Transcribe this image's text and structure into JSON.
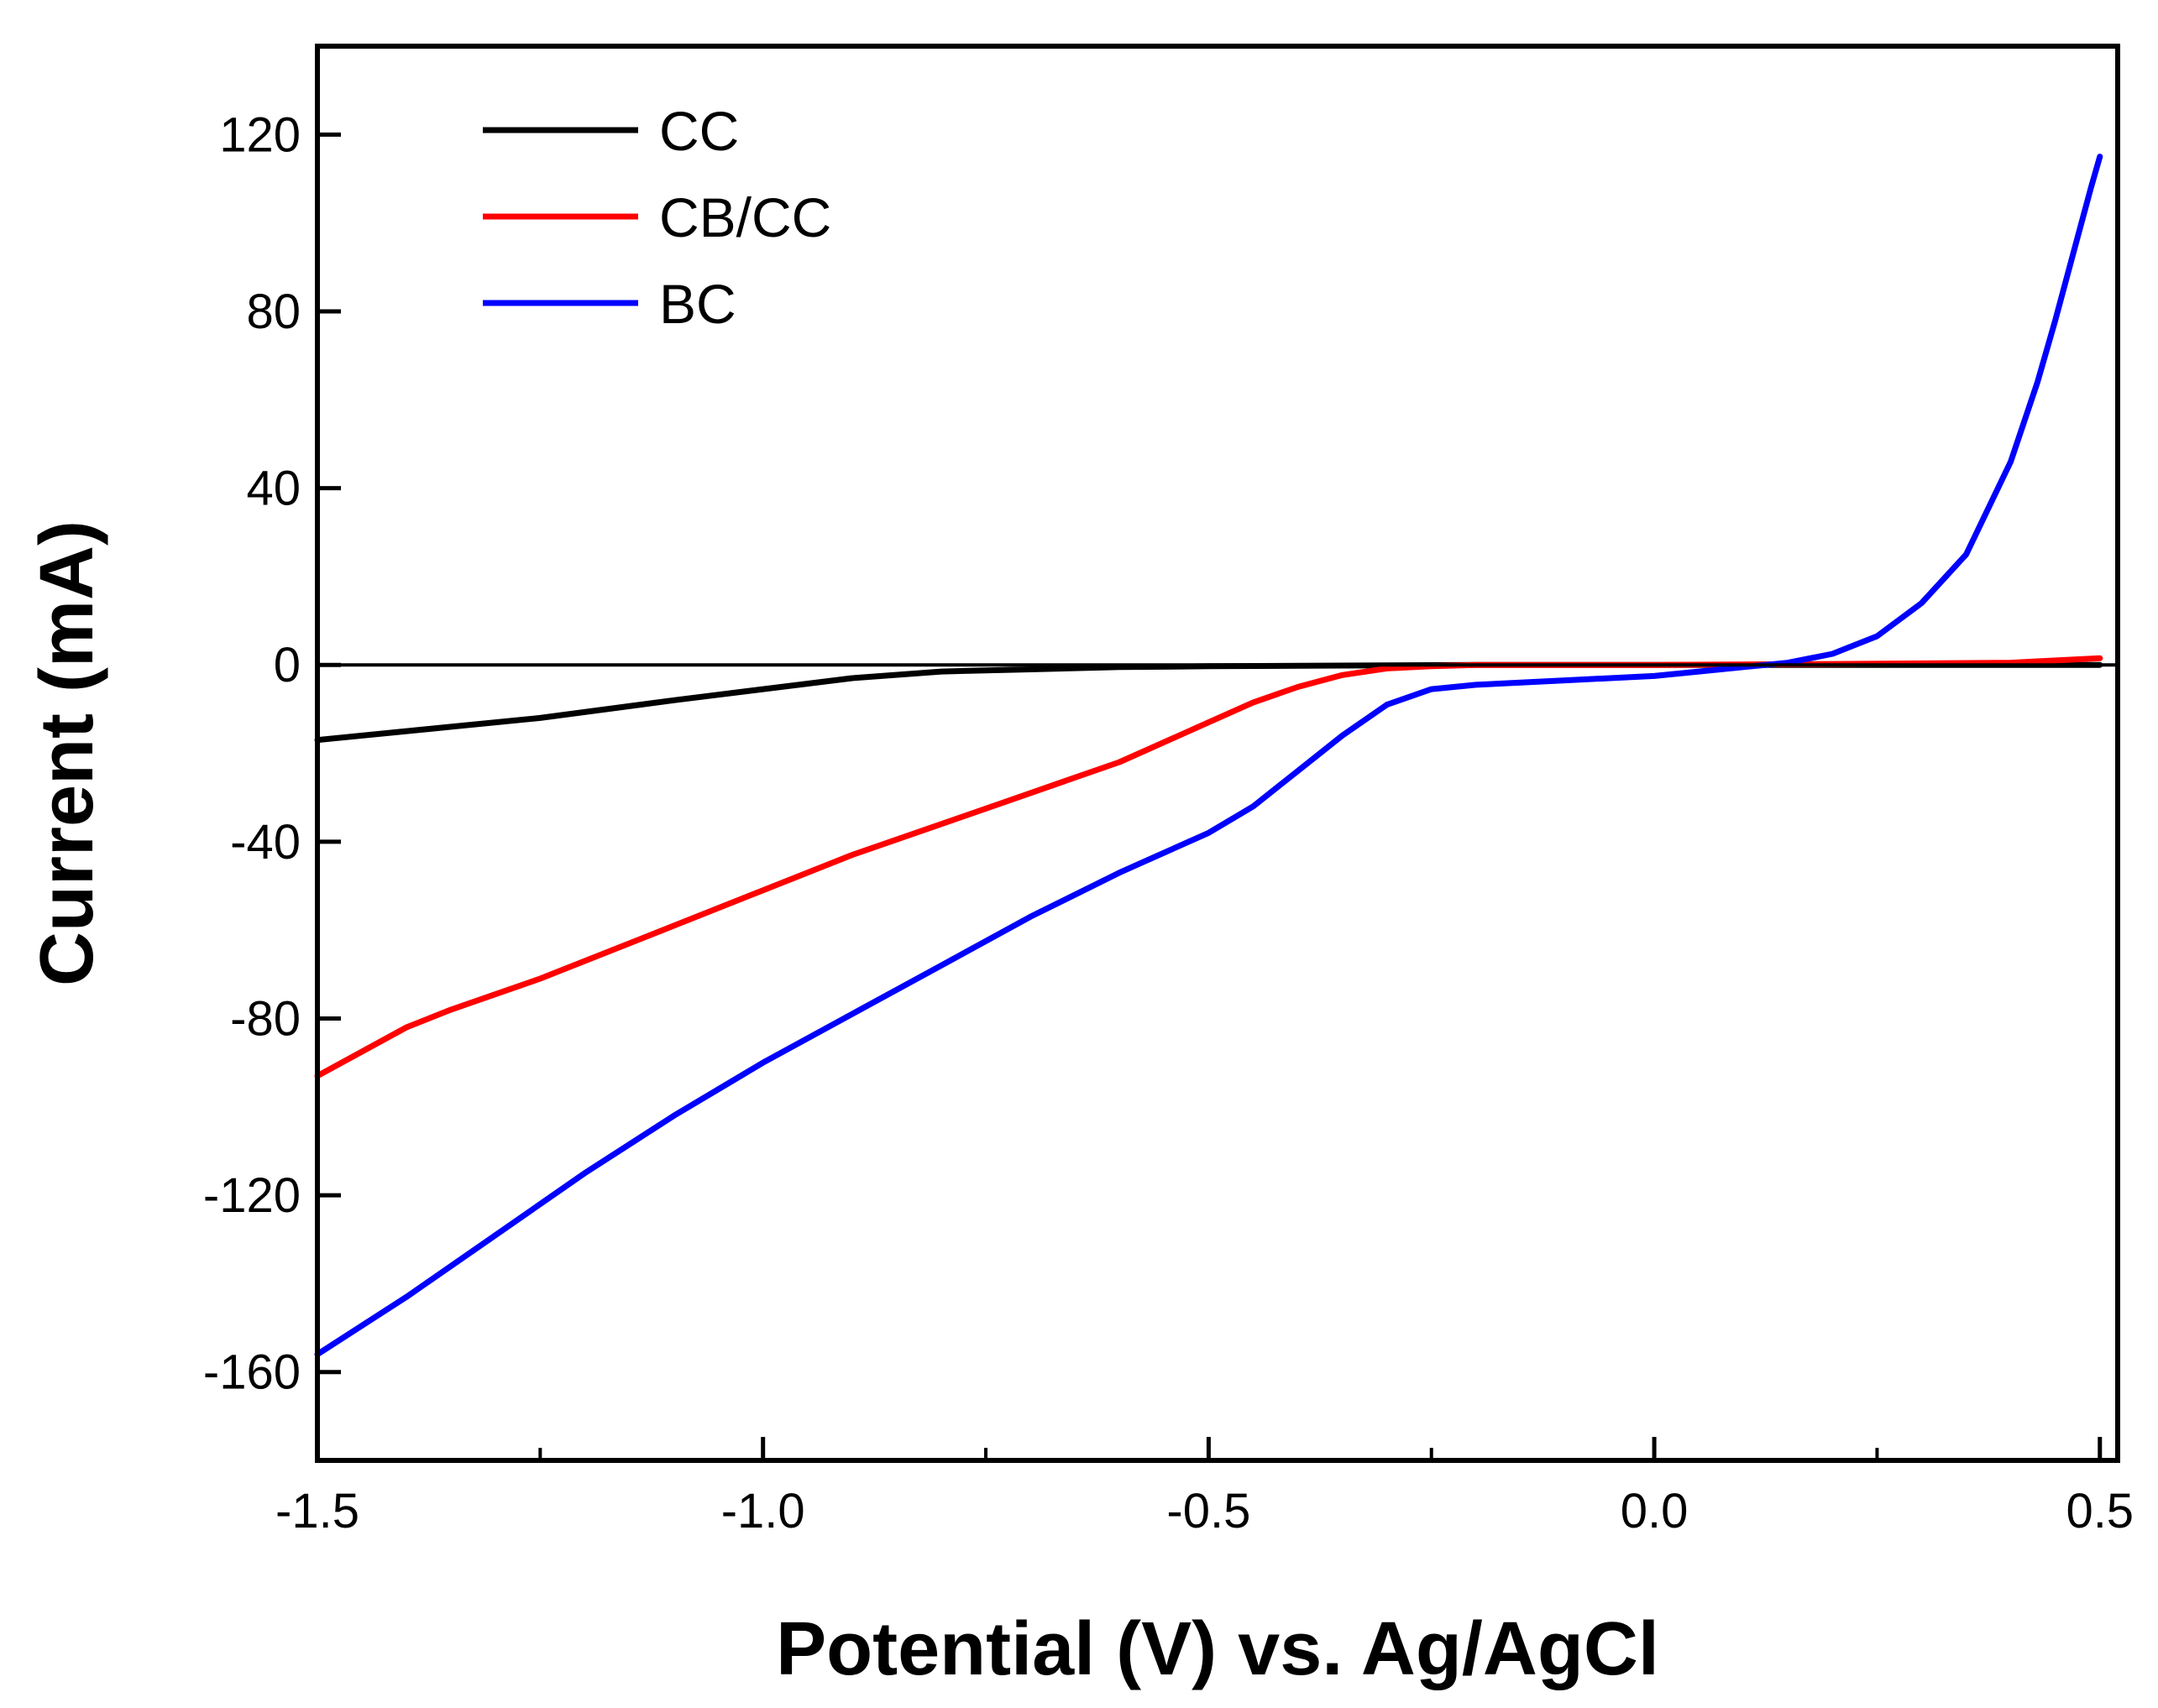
{
  "chart_data": {
    "type": "line",
    "xlabel": "Potential (V) vs. Ag/AgCl",
    "ylabel": "Current (mA)",
    "xlim": [
      -1.5,
      0.52
    ],
    "ylim": [
      -180,
      140
    ],
    "xticks": [
      -1.5,
      -1.0,
      -0.5,
      0.0,
      0.5
    ],
    "xtick_labels": [
      "-1.5",
      "-1.0",
      "-0.5",
      "0.0",
      "0.5"
    ],
    "yticks": [
      120,
      80,
      40,
      0,
      -40,
      -80,
      -120,
      -160
    ],
    "ytick_labels": [
      "120",
      "80",
      "40",
      "0",
      "-40",
      "-80",
      "-120",
      "-160"
    ],
    "grid": false,
    "legend_position": "top-left",
    "series": [
      {
        "name": "CC",
        "color": "#000000",
        "x": [
          -1.5,
          -1.35,
          -1.25,
          -1.1,
          -1.0,
          -0.9,
          -0.8,
          -0.7,
          -0.6,
          -0.5,
          -0.4,
          -0.3,
          -0.2,
          0.0,
          0.2,
          0.5
        ],
        "y": [
          -17,
          -14,
          -12,
          -8,
          -5.5,
          -3,
          -1.5,
          -1,
          -0.5,
          -0.3,
          -0.2,
          -0.1,
          0,
          0,
          0,
          0
        ]
      },
      {
        "name": "CB/CC",
        "color": "#ff0000",
        "x": [
          -1.5,
          -1.4,
          -1.35,
          -1.25,
          -1.1,
          -1.0,
          -0.9,
          -0.8,
          -0.7,
          -0.6,
          -0.5,
          -0.45,
          -0.4,
          -0.35,
          -0.3,
          -0.25,
          -0.2,
          0.0,
          0.2,
          0.4,
          0.5
        ],
        "y": [
          -93,
          -82,
          -78,
          -71,
          -59,
          -51,
          -43,
          -36,
          -29,
          -22,
          -13,
          -8.5,
          -5,
          -2.3,
          -0.8,
          -0.3,
          0,
          0,
          0.2,
          0.5,
          1.5
        ]
      },
      {
        "name": "BC",
        "color": "#0000ff",
        "x": [
          -1.5,
          -1.4,
          -1.3,
          -1.2,
          -1.1,
          -1.0,
          -0.9,
          -0.8,
          -0.7,
          -0.6,
          -0.5,
          -0.45,
          -0.4,
          -0.35,
          -0.3,
          -0.25,
          -0.2,
          -0.15,
          -0.1,
          0.0,
          0.05,
          0.1,
          0.15,
          0.2,
          0.25,
          0.3,
          0.35,
          0.4,
          0.43,
          0.45,
          0.47,
          0.49,
          0.5
        ],
        "y": [
          -156,
          -143,
          -129,
          -115,
          -102,
          -90,
          -79,
          -68,
          -57,
          -47,
          -38,
          -32,
          -24,
          -16,
          -9,
          -5.5,
          -4.5,
          -4,
          -3.5,
          -2.5,
          -1.5,
          -0.5,
          0.5,
          2.5,
          6.5,
          14,
          25,
          46,
          64,
          78,
          93,
          108,
          115
        ]
      }
    ]
  }
}
